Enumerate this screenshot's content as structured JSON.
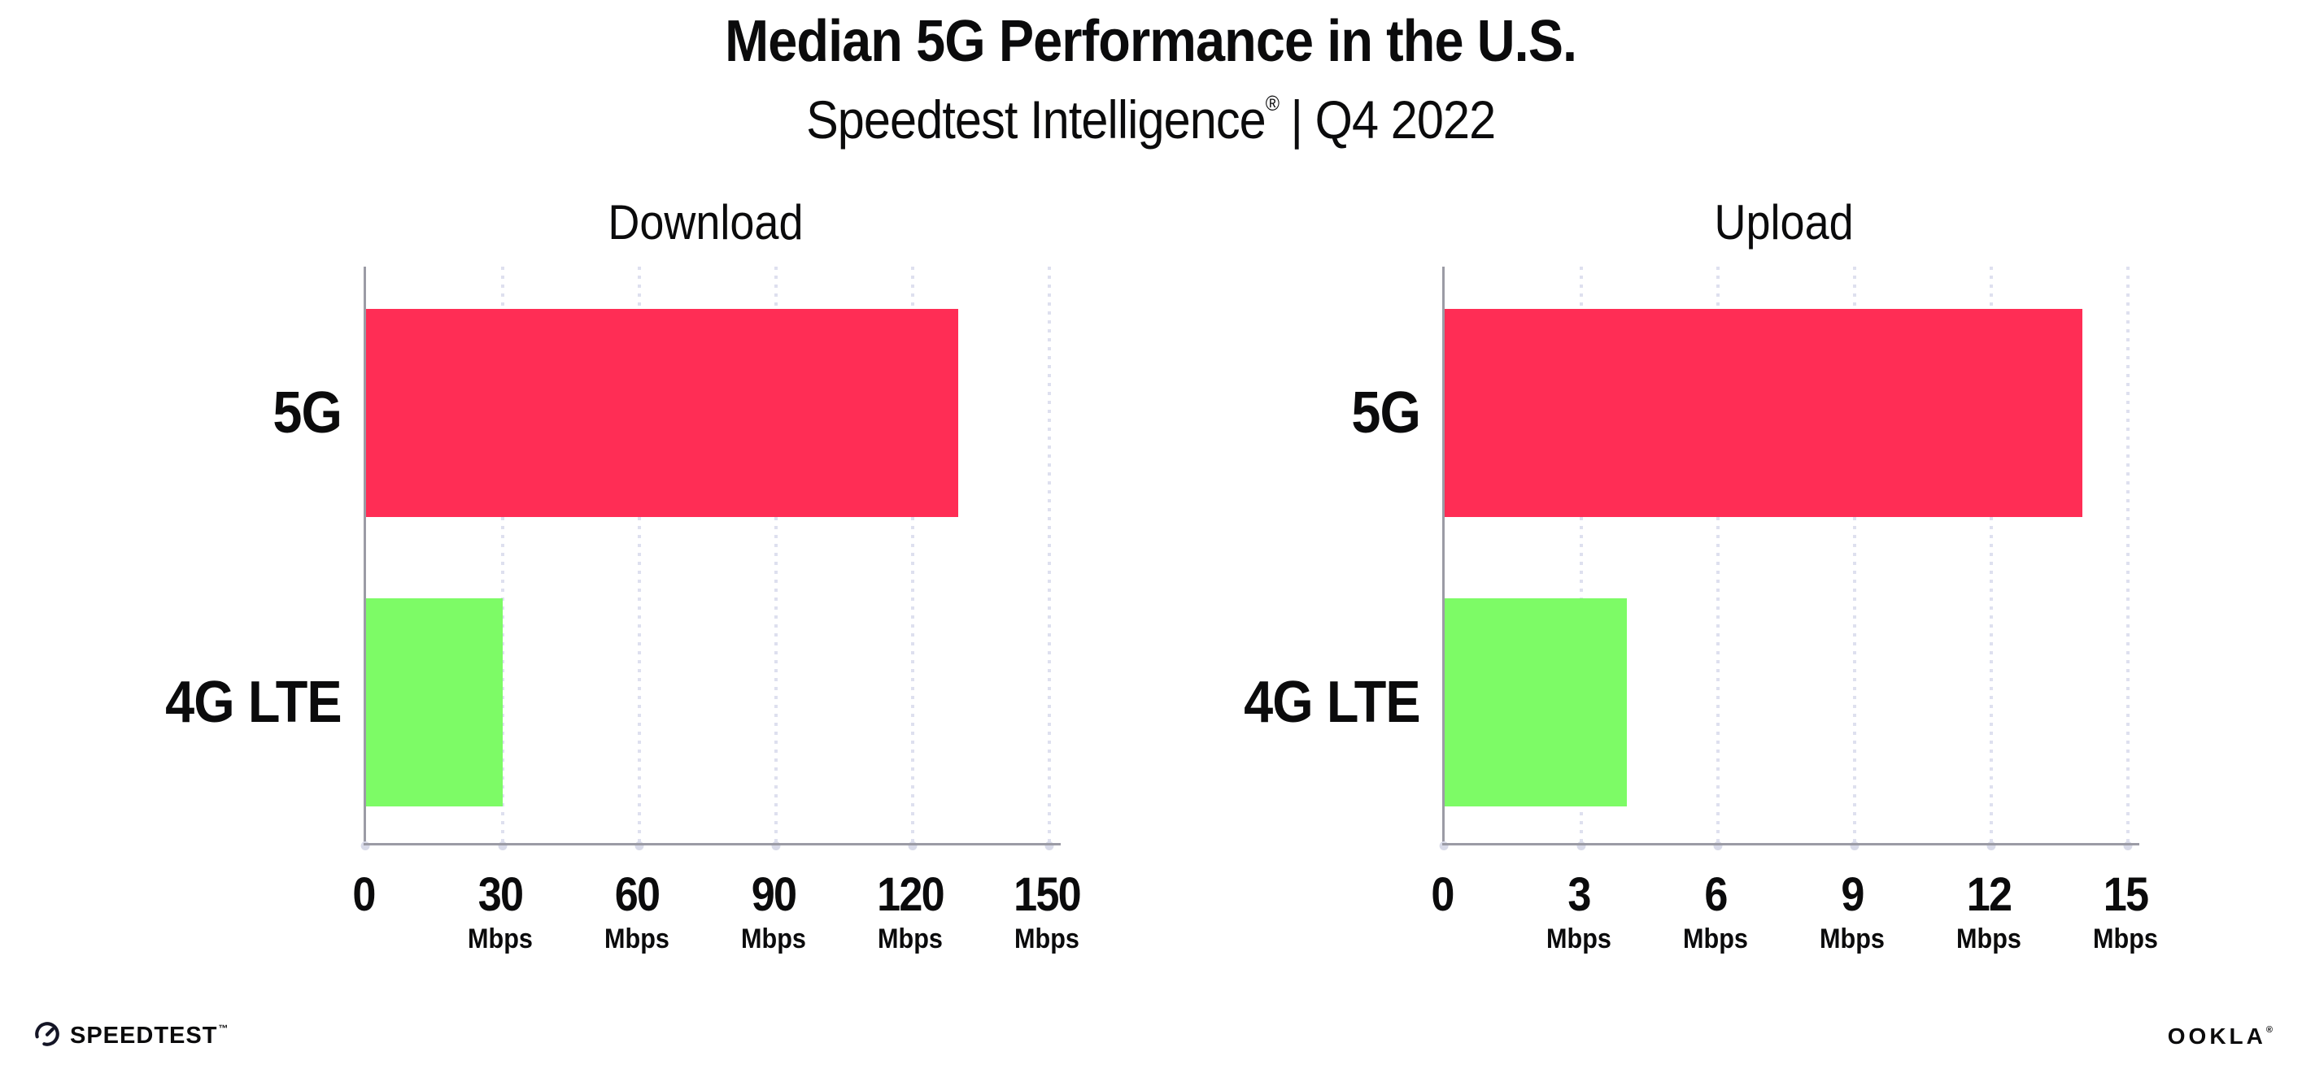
{
  "header": {
    "title": "Median 5G Performance in the U.S.",
    "subtitle_product": "Speedtest Intelligence",
    "subtitle_registered": "®",
    "subtitle_period": "| Q4 2022"
  },
  "chart_data": [
    {
      "type": "bar",
      "orientation": "horizontal",
      "title": "Download",
      "categories": [
        "5G",
        "4G LTE"
      ],
      "values": [
        130,
        30
      ],
      "unit": "Mbps",
      "xlabel": "",
      "ylabel": "",
      "xlim": [
        0,
        150
      ],
      "xticks": [
        0,
        30,
        60,
        90,
        120,
        150
      ],
      "tick_units": [
        "",
        "Mbps",
        "Mbps",
        "Mbps",
        "Mbps",
        "Mbps"
      ],
      "bar_colors": [
        "#FF2D55",
        "#7DFB66"
      ],
      "grid": "dotted-vertical-gridlines",
      "legend": "none"
    },
    {
      "type": "bar",
      "orientation": "horizontal",
      "title": "Upload",
      "categories": [
        "5G",
        "4G LTE"
      ],
      "values": [
        14,
        4
      ],
      "unit": "Mbps",
      "xlabel": "",
      "ylabel": "",
      "xlim": [
        0,
        15
      ],
      "xticks": [
        0,
        3,
        6,
        9,
        12,
        15
      ],
      "tick_units": [
        "",
        "Mbps",
        "Mbps",
        "Mbps",
        "Mbps",
        "Mbps"
      ],
      "bar_colors": [
        "#FF2D55",
        "#7DFB66"
      ],
      "grid": "dotted-vertical-gridlines",
      "legend": "none"
    }
  ],
  "footer": {
    "speedtest_label": "SPEEDTEST",
    "speedtest_trademark": "™",
    "speedtest_icon": "speedtest-gauge-icon",
    "ookla_label": "OOKLA",
    "ookla_registered": "®"
  },
  "colors": {
    "bar_5g": "#FF2D55",
    "bar_4g_lte": "#7DFB66",
    "axis": "#9B9BA5",
    "gridline": "#DEE0EF",
    "text": "#0B0B0C",
    "background": "#FFFFFF"
  }
}
